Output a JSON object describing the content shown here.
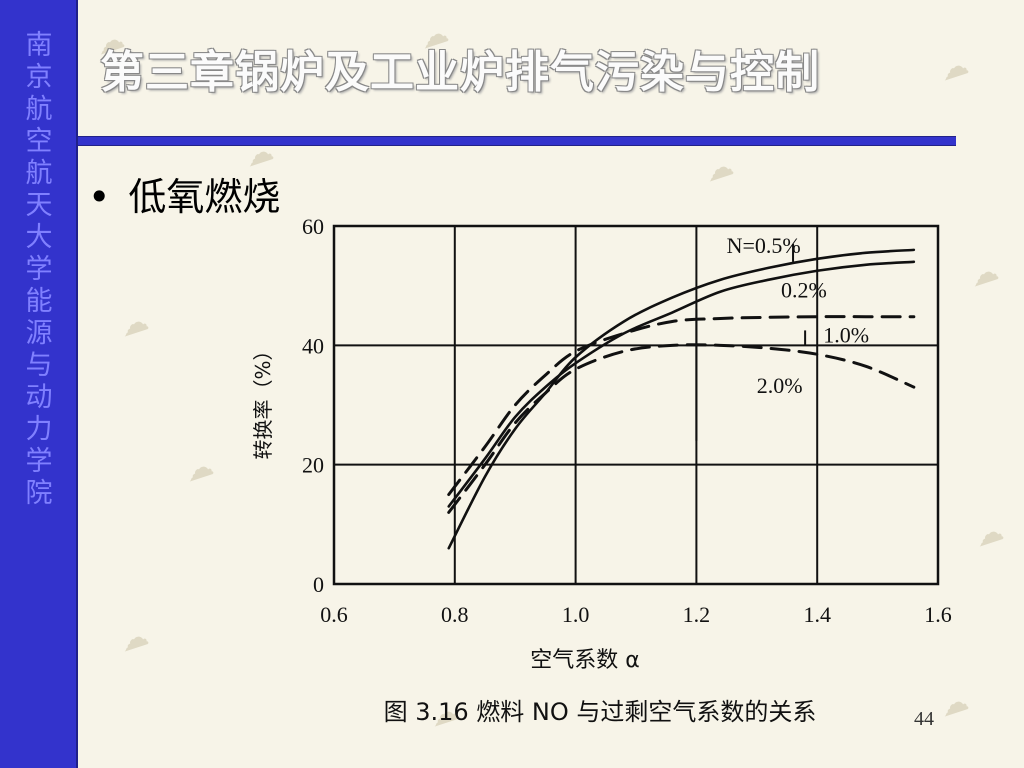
{
  "sidebar": {
    "text": "南京航空航天大学能源与动力学院"
  },
  "header": {
    "title": "第三章锅炉及工业炉排气污染与控制"
  },
  "content": {
    "bullet": "低氧燃烧"
  },
  "chart_data": {
    "type": "line",
    "title": "",
    "caption": "图 3.16 燃料 NO 与过剩空气系数的关系",
    "xlabel": "空气系数 α",
    "ylabel": "转换率（%）",
    "xlim": [
      0.6,
      1.6
    ],
    "ylim": [
      0,
      60
    ],
    "x_ticks": [
      "0.6",
      "0.8",
      "1.0",
      "1.2",
      "1.4",
      "1.6"
    ],
    "y_ticks": [
      "0",
      "20",
      "40",
      "60"
    ],
    "grid": true,
    "series": [
      {
        "name": "N=0.5%",
        "style": "solid",
        "x": [
          0.79,
          0.85,
          0.9,
          0.95,
          1.0,
          1.08,
          1.16,
          1.24,
          1.32,
          1.4,
          1.48,
          1.56
        ],
        "y": [
          6,
          18,
          26,
          32,
          38,
          44,
          48,
          51,
          53,
          54.5,
          55.5,
          56
        ]
      },
      {
        "name": "0.2%",
        "style": "solid",
        "x": [
          0.79,
          0.85,
          0.9,
          0.95,
          1.0,
          1.08,
          1.16,
          1.24,
          1.32,
          1.4,
          1.48,
          1.56
        ],
        "y": [
          13,
          21,
          28,
          33,
          37,
          42,
          45.5,
          49,
          51,
          52.5,
          53.5,
          54
        ]
      },
      {
        "name": "1.0%",
        "style": "dashed",
        "x": [
          0.79,
          0.85,
          0.9,
          0.95,
          1.0,
          1.08,
          1.16,
          1.24,
          1.32,
          1.4,
          1.48,
          1.56
        ],
        "y": [
          15,
          23,
          30,
          35,
          39,
          42,
          44,
          44.5,
          44.7,
          44.8,
          44.8,
          44.8
        ]
      },
      {
        "name": "2.0%",
        "style": "dashed",
        "x": [
          0.79,
          0.85,
          0.9,
          0.95,
          1.0,
          1.08,
          1.16,
          1.24,
          1.32,
          1.4,
          1.48,
          1.56
        ],
        "y": [
          12,
          20,
          27,
          32,
          36,
          39,
          40,
          40,
          39.5,
          38.5,
          36.5,
          33
        ]
      }
    ],
    "labels": [
      {
        "text": "N=0.5%",
        "x": 1.25,
        "y": 55.5
      },
      {
        "text": "0.2%",
        "x": 1.34,
        "y": 48
      },
      {
        "text": "1.0%",
        "x": 1.41,
        "y": 40.5
      },
      {
        "text": "2.0%",
        "x": 1.3,
        "y": 32
      }
    ]
  },
  "footer": {
    "page": "44"
  }
}
